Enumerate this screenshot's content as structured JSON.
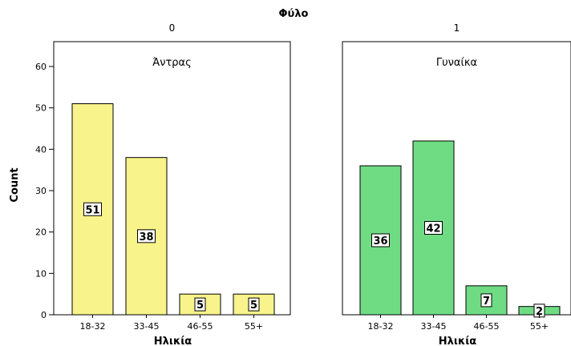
{
  "chart_data": {
    "type": "bar",
    "title": "Φύλο",
    "ylabel": "Count",
    "xlabel": "Ηλικία",
    "ylim": [
      0,
      66
    ],
    "yticks": [
      0,
      10,
      20,
      30,
      40,
      50,
      60
    ],
    "categories": [
      "18-32",
      "33-45",
      "46-55",
      "55+"
    ],
    "panels": [
      {
        "header": "0",
        "label": "Άντρας",
        "color": "#f8f38a",
        "values": [
          51,
          38,
          5,
          5
        ],
        "value_labels": [
          "51",
          "38",
          "5",
          "5"
        ]
      },
      {
        "header": "1",
        "label": "Γυναίκα",
        "color": "#6fdc84",
        "values": [
          36,
          42,
          7,
          2
        ],
        "value_labels": [
          "36",
          "42",
          "7",
          "2"
        ]
      }
    ],
    "grid": false,
    "legend": "none"
  }
}
